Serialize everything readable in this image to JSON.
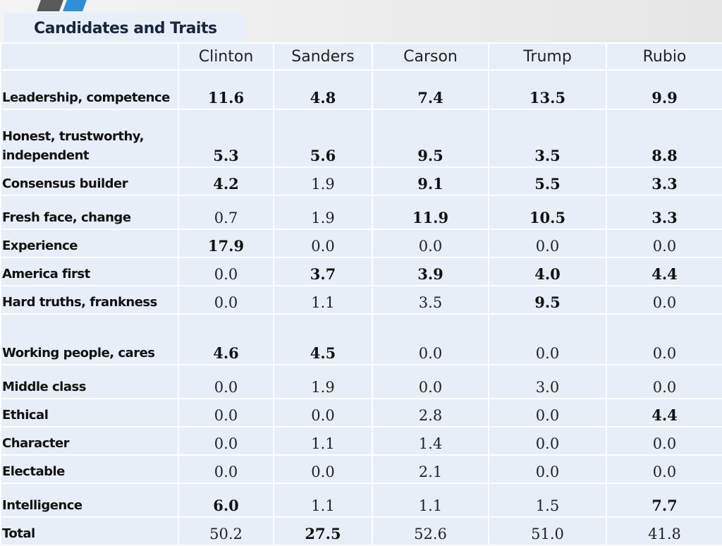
{
  "title": "Candidates and Traits",
  "chart_data": {
    "type": "table",
    "title": "Candidates and Traits",
    "columns": [
      "Clinton",
      "Sanders",
      "Carson",
      "Trump",
      "Rubio"
    ],
    "rows": [
      {
        "label": "Leadership, competence",
        "values": [
          "11.6",
          "4.8",
          "7.4",
          "13.5",
          "9.9"
        ],
        "bold": [
          true,
          true,
          true,
          true,
          true
        ]
      },
      {
        "label": "Honest, trustworthy, independent",
        "values": [
          "5.3",
          "5.6",
          "9.5",
          "3.5",
          "8.8"
        ],
        "bold": [
          true,
          true,
          true,
          true,
          true
        ]
      },
      {
        "label": "Consensus builder",
        "values": [
          "4.2",
          "1.9",
          "9.1",
          "5.5",
          "3.3"
        ],
        "bold": [
          true,
          false,
          true,
          true,
          true
        ]
      },
      {
        "label": "Fresh face, change",
        "values": [
          "0.7",
          "1.9",
          "11.9",
          "10.5",
          "3.3"
        ],
        "bold": [
          false,
          false,
          true,
          true,
          true
        ]
      },
      {
        "label": "Experience",
        "values": [
          "17.9",
          "0.0",
          "0.0",
          "0.0",
          "0.0"
        ],
        "bold": [
          true,
          false,
          false,
          false,
          false
        ]
      },
      {
        "label": "America first",
        "values": [
          "0.0",
          "3.7",
          "3.9",
          "4.0",
          "4.4"
        ],
        "bold": [
          false,
          true,
          true,
          true,
          true
        ]
      },
      {
        "label": "Hard truths, frankness",
        "values": [
          "0.0",
          "1.1",
          "3.5",
          "9.5",
          "0.0"
        ],
        "bold": [
          false,
          false,
          false,
          true,
          false
        ]
      },
      {
        "label": "Working people, cares",
        "values": [
          "4.6",
          "4.5",
          "0.0",
          "0.0",
          "0.0"
        ],
        "bold": [
          true,
          true,
          false,
          false,
          false
        ]
      },
      {
        "label": "Middle class",
        "values": [
          "0.0",
          "1.9",
          "0.0",
          "3.0",
          "0.0"
        ],
        "bold": [
          false,
          false,
          false,
          false,
          false
        ]
      },
      {
        "label": "Ethical",
        "values": [
          "0.0",
          "0.0",
          "2.8",
          "0.0",
          "4.4"
        ],
        "bold": [
          false,
          false,
          false,
          false,
          true
        ]
      },
      {
        "label": "Character",
        "values": [
          "0.0",
          "1.1",
          "1.4",
          "0.0",
          "0.0"
        ],
        "bold": [
          false,
          false,
          false,
          false,
          false
        ]
      },
      {
        "label": "Electable",
        "values": [
          "0.0",
          "0.0",
          "2.1",
          "0.0",
          "0.0"
        ],
        "bold": [
          false,
          false,
          false,
          false,
          false
        ]
      },
      {
        "label": "Intelligence",
        "values": [
          "6.0",
          "1.1",
          "1.1",
          "1.5",
          "7.7"
        ],
        "bold": [
          true,
          false,
          false,
          false,
          true
        ]
      },
      {
        "label": "Total",
        "values": [
          "50.2",
          "27.5",
          "52.6",
          "51.0",
          "41.8"
        ],
        "bold": [
          false,
          true,
          false,
          false,
          false
        ]
      }
    ]
  }
}
